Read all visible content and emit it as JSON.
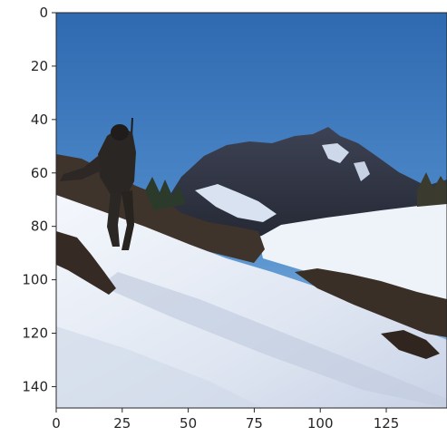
{
  "image": {
    "description_icon": "mountain-snow-hiker-photo",
    "axes": {
      "x_ticks": [
        0,
        25,
        50,
        75,
        100,
        125
      ],
      "y_ticks": [
        0,
        20,
        40,
        60,
        80,
        100,
        120,
        140
      ],
      "x_range": [
        0,
        148
      ],
      "y_range": [
        0,
        148
      ]
    },
    "colors": {
      "sky_top": "#3f74b4",
      "sky_bottom": "#8fb7e0",
      "mountain_dark": "#2e3242",
      "mountain_mid": "#505466",
      "snow": "#e8edf6",
      "snow_shadow": "#b9c4d8",
      "rock": "#3b3029",
      "hiker": "#2a2624"
    }
  }
}
